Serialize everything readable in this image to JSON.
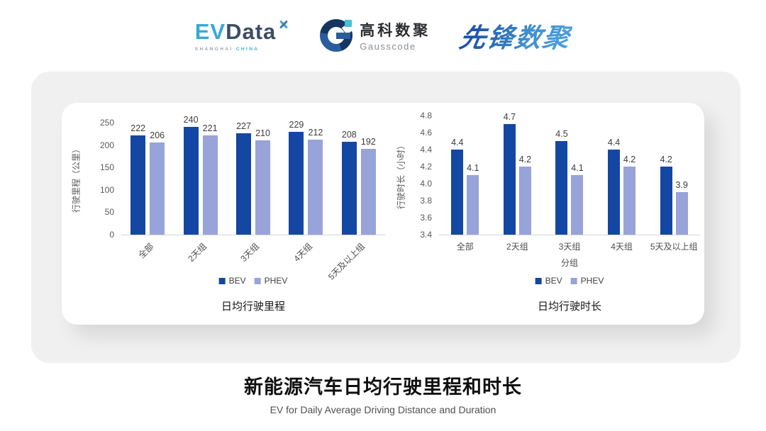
{
  "header": {
    "evdata": {
      "ev": "EV",
      "data": "Data",
      "subtext_left": "SHANGHAI",
      "subtext_right": "CHINA"
    },
    "gausscode": {
      "cn": "高科数聚",
      "en": "Gausscode"
    },
    "pioneer": {
      "text": "先锋数聚"
    }
  },
  "colors": {
    "bev": "#1447a4",
    "phev": "#98a3d9",
    "evdata_cyan": "#38a8d8",
    "evdata_dark": "#3d4e63",
    "gausscode_navy": "#16365f",
    "gausscode_blue": "#2a5c9e",
    "gausscode_cyan": "#45c0d4",
    "pioneer_gradient_start": "#1c55a7",
    "pioneer_gradient_end": "#4aa0dc",
    "panel_gray": "#f0f0f0",
    "axis_line": "#d6d6d6",
    "tick_text": "#595959"
  },
  "chart_data": [
    {
      "type": "bar",
      "title": "日均行驶里程",
      "ylabel": "行驶里程（公里）",
      "xlabel": "",
      "categories": [
        "全部",
        "2天组",
        "3天组",
        "4天组",
        "5天及以上组"
      ],
      "series": [
        {
          "name": "BEV",
          "values": [
            222,
            240,
            227,
            229,
            208
          ]
        },
        {
          "name": "PHEV",
          "values": [
            206,
            221,
            210,
            212,
            192
          ]
        }
      ],
      "ylim": [
        0,
        250
      ],
      "ytick_step": 50,
      "grid": false,
      "legend_position": "bottom",
      "x_labels_rotated": true
    },
    {
      "type": "bar",
      "title": "日均行驶时长",
      "ylabel": "行驶时长（小时）",
      "xlabel": "分组",
      "categories": [
        "全部",
        "2天组",
        "3天组",
        "4天组",
        "5天及以上组"
      ],
      "series": [
        {
          "name": "BEV",
          "values": [
            4.4,
            4.7,
            4.5,
            4.4,
            4.2
          ]
        },
        {
          "name": "PHEV",
          "values": [
            4.1,
            4.2,
            4.1,
            4.2,
            3.9
          ]
        }
      ],
      "ylim": [
        3.4,
        4.8
      ],
      "ytick_step": 0.2,
      "grid": false,
      "legend_position": "bottom",
      "x_labels_rotated": false
    }
  ],
  "footer": {
    "title": "新能源汽车日均行驶里程和时长",
    "subtitle": "EV for Daily Average Driving Distance and Duration"
  }
}
